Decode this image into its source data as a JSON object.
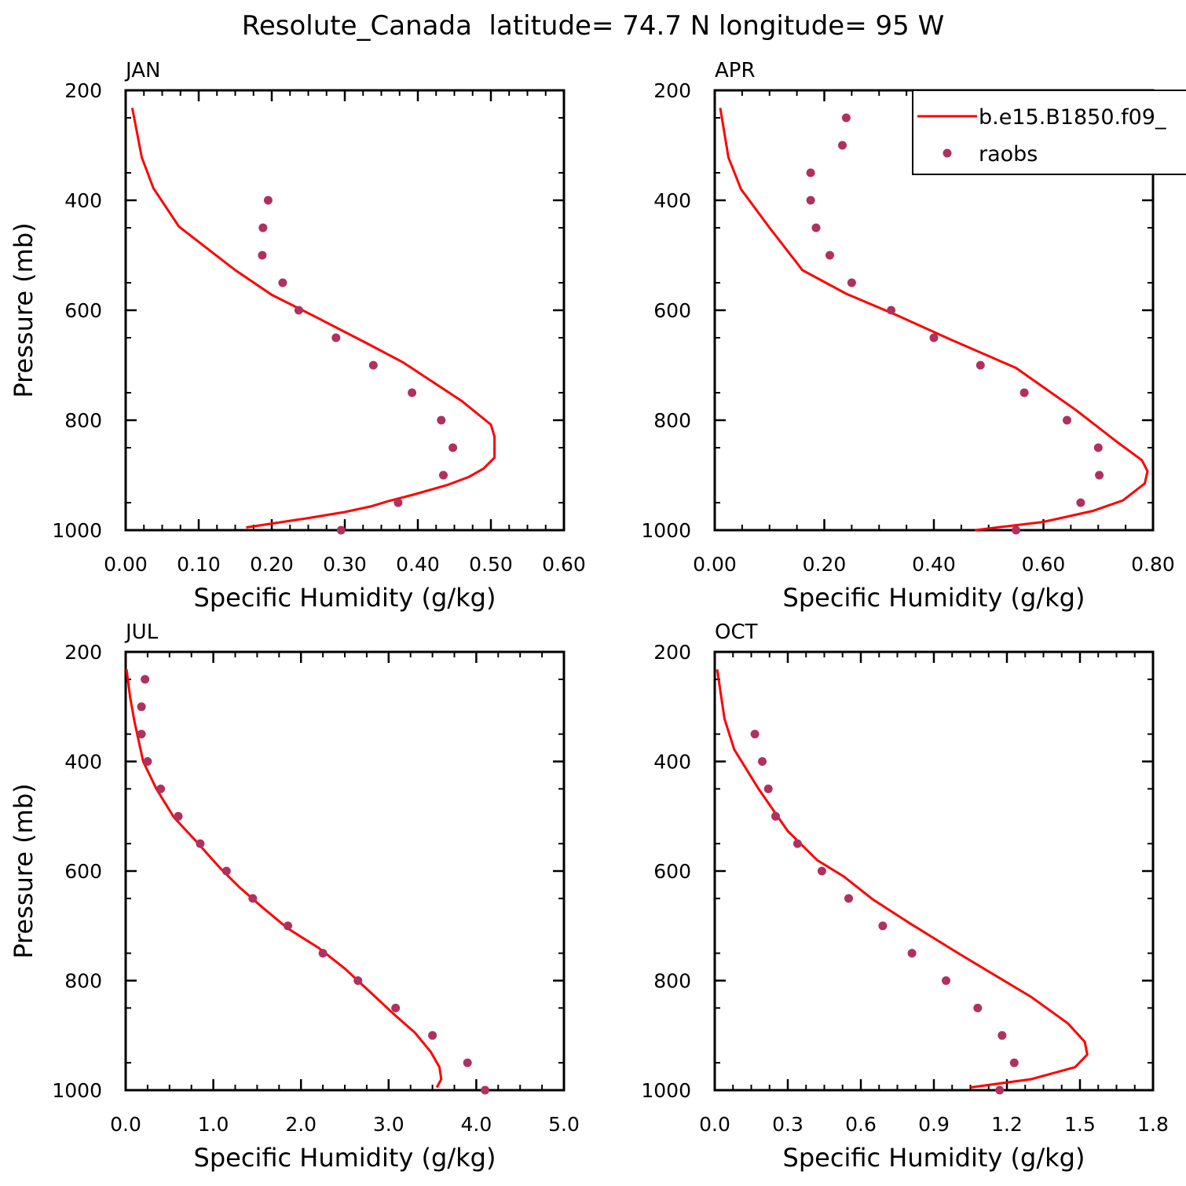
{
  "figure": {
    "title": "Resolute_Canada  latitude= 74.7 N longitude= 95 W"
  },
  "colors": {
    "model_line": "#ff0000",
    "obs_marker": "#b03060",
    "axes": "#000000"
  },
  "legend": {
    "placement": "top-right of APR panel",
    "entries": [
      {
        "label": "b.e15.B1850.f09_",
        "style": "line"
      },
      {
        "label": "raobs",
        "style": "marker"
      }
    ]
  },
  "chart_data": [
    {
      "panel": "JAN",
      "type": "line",
      "xlabel": "Specific Humidity (g/kg)",
      "ylabel": "Pressure (mb)",
      "xlim": [
        0,
        0.6
      ],
      "ylim": [
        1000,
        200
      ],
      "y_reversed": true,
      "xticks": [
        0,
        0.1,
        0.2,
        0.3,
        0.4,
        0.5,
        0.6
      ],
      "xtick_labels": [
        "0.00",
        "0.10",
        "0.20",
        "0.30",
        "0.40",
        "0.50",
        "0.60"
      ],
      "yticks": [
        200,
        400,
        600,
        800,
        1000
      ],
      "ytick_labels": [
        "200",
        "400",
        "600",
        "800",
        "1000"
      ],
      "series": [
        {
          "name": "b.e15.B1850.f09_",
          "kind": "line",
          "points": [
            [
              0.165,
              995
            ],
            [
              0.2,
              988
            ],
            [
              0.25,
              978
            ],
            [
              0.3,
              967
            ],
            [
              0.335,
              957
            ],
            [
              0.36,
              947
            ],
            [
              0.395,
              935
            ],
            [
              0.44,
              918
            ],
            [
              0.47,
              903
            ],
            [
              0.49,
              888
            ],
            [
              0.505,
              868
            ],
            [
              0.505,
              830
            ],
            [
              0.5,
              808
            ],
            [
              0.46,
              765
            ],
            [
              0.38,
              695
            ],
            [
              0.33,
              660
            ],
            [
              0.26,
              612
            ],
            [
              0.2,
              572
            ],
            [
              0.15,
              527
            ],
            [
              0.073,
              448
            ],
            [
              0.038,
              378
            ],
            [
              0.022,
              322
            ],
            [
              0.009,
              232
            ]
          ]
        },
        {
          "name": "raobs",
          "kind": "scatter",
          "points": [
            [
              0.195,
              400
            ],
            [
              0.188,
              450
            ],
            [
              0.187,
              500
            ],
            [
              0.215,
              550
            ],
            [
              0.237,
              600
            ],
            [
              0.288,
              650
            ],
            [
              0.339,
              700
            ],
            [
              0.392,
              750
            ],
            [
              0.432,
              800
            ],
            [
              0.448,
              850
            ],
            [
              0.435,
              900
            ],
            [
              0.373,
              950
            ],
            [
              0.295,
              1000
            ]
          ]
        }
      ]
    },
    {
      "panel": "APR",
      "type": "line",
      "xlabel": "Specific Humidity (g/kg)",
      "ylabel": "",
      "xlim": [
        0,
        0.8
      ],
      "ylim": [
        1000,
        200
      ],
      "y_reversed": true,
      "xticks": [
        0,
        0.2,
        0.4,
        0.6,
        0.8
      ],
      "xtick_labels": [
        "0.00",
        "0.20",
        "0.40",
        "0.60",
        "0.80"
      ],
      "yticks": [
        200,
        400,
        600,
        800,
        1000
      ],
      "ytick_labels": [
        "200",
        "400",
        "600",
        "800",
        "1000"
      ],
      "series": [
        {
          "name": "b.e15.B1850.f09_",
          "kind": "line",
          "points": [
            [
              0.475,
              1000
            ],
            [
              0.6,
              985
            ],
            [
              0.69,
              965
            ],
            [
              0.745,
              946
            ],
            [
              0.785,
              915
            ],
            [
              0.79,
              893
            ],
            [
              0.78,
              873
            ],
            [
              0.735,
              840
            ],
            [
              0.66,
              782
            ],
            [
              0.55,
              705
            ],
            [
              0.43,
              653
            ],
            [
              0.33,
              608
            ],
            [
              0.24,
              570
            ],
            [
              0.16,
              527
            ],
            [
              0.1,
              450
            ],
            [
              0.048,
              380
            ],
            [
              0.025,
              322
            ],
            [
              0.01,
              232
            ]
          ]
        },
        {
          "name": "raobs",
          "kind": "scatter",
          "points": [
            [
              0.24,
              250
            ],
            [
              0.233,
              300
            ],
            [
              0.175,
              350
            ],
            [
              0.175,
              400
            ],
            [
              0.185,
              450
            ],
            [
              0.21,
              500
            ],
            [
              0.25,
              550
            ],
            [
              0.322,
              600
            ],
            [
              0.4,
              650
            ],
            [
              0.485,
              700
            ],
            [
              0.565,
              750
            ],
            [
              0.643,
              800
            ],
            [
              0.7,
              850
            ],
            [
              0.702,
              900
            ],
            [
              0.668,
              950
            ],
            [
              0.55,
              1000
            ]
          ]
        }
      ]
    },
    {
      "panel": "JUL",
      "type": "line",
      "xlabel": "Specific Humidity (g/kg)",
      "ylabel": "Pressure (mb)",
      "xlim": [
        0,
        5.0
      ],
      "ylim": [
        1000,
        200
      ],
      "y_reversed": true,
      "xticks": [
        0,
        1,
        2,
        3,
        4,
        5
      ],
      "xtick_labels": [
        "0.0",
        "1.0",
        "2.0",
        "3.0",
        "4.0",
        "5.0"
      ],
      "yticks": [
        200,
        400,
        600,
        800,
        1000
      ],
      "ytick_labels": [
        "200",
        "400",
        "600",
        "800",
        "1000"
      ],
      "series": [
        {
          "name": "b.e15.B1850.f09_",
          "kind": "line",
          "points": [
            [
              3.55,
              995
            ],
            [
              3.6,
              980
            ],
            [
              3.58,
              958
            ],
            [
              3.48,
              930
            ],
            [
              3.3,
              895
            ],
            [
              3.05,
              860
            ],
            [
              2.85,
              830
            ],
            [
              2.5,
              778
            ],
            [
              2.2,
              740
            ],
            [
              1.85,
              705
            ],
            [
              1.55,
              665
            ],
            [
              1.3,
              630
            ],
            [
              1.08,
              595
            ],
            [
              0.8,
              545
            ],
            [
              0.55,
              502
            ],
            [
              0.35,
              450
            ],
            [
              0.2,
              400
            ],
            [
              0.1,
              327
            ],
            [
              0.05,
              282
            ],
            [
              0.01,
              232
            ]
          ]
        },
        {
          "name": "raobs",
          "kind": "scatter",
          "points": [
            [
              0.22,
              250
            ],
            [
              0.18,
              300
            ],
            [
              0.18,
              350
            ],
            [
              0.25,
              400
            ],
            [
              0.4,
              450
            ],
            [
              0.6,
              500
            ],
            [
              0.85,
              550
            ],
            [
              1.15,
              600
            ],
            [
              1.45,
              650
            ],
            [
              1.85,
              700
            ],
            [
              2.25,
              750
            ],
            [
              2.65,
              800
            ],
            [
              3.08,
              850
            ],
            [
              3.5,
              900
            ],
            [
              3.9,
              950
            ],
            [
              4.1,
              1000
            ]
          ]
        }
      ]
    },
    {
      "panel": "OCT",
      "type": "line",
      "xlabel": "Specific Humidity (g/kg)",
      "ylabel": "",
      "xlim": [
        0,
        1.8
      ],
      "ylim": [
        1000,
        200
      ],
      "y_reversed": true,
      "xticks": [
        0,
        0.3,
        0.6,
        0.9,
        1.2,
        1.5,
        1.8
      ],
      "xtick_labels": [
        "0.0",
        "0.3",
        "0.6",
        "0.9",
        "1.2",
        "1.5",
        "1.8"
      ],
      "yticks": [
        200,
        400,
        600,
        800,
        1000
      ],
      "ytick_labels": [
        "200",
        "400",
        "600",
        "800",
        "1000"
      ],
      "series": [
        {
          "name": "b.e15.B1850.f09_",
          "kind": "line",
          "points": [
            [
              1.05,
              995
            ],
            [
              1.3,
              980
            ],
            [
              1.48,
              958
            ],
            [
              1.53,
              935
            ],
            [
              1.52,
              912
            ],
            [
              1.45,
              878
            ],
            [
              1.4,
              862
            ],
            [
              1.3,
              830
            ],
            [
              1.0,
              750
            ],
            [
              0.8,
              695
            ],
            [
              0.65,
              652
            ],
            [
              0.53,
              610
            ],
            [
              0.42,
              580
            ],
            [
              0.3,
              527
            ],
            [
              0.18,
              450
            ],
            [
              0.08,
              378
            ],
            [
              0.04,
              322
            ],
            [
              0.01,
              232
            ]
          ]
        },
        {
          "name": "raobs",
          "kind": "scatter",
          "points": [
            [
              0.165,
              350
            ],
            [
              0.195,
              400
            ],
            [
              0.22,
              450
            ],
            [
              0.25,
              500
            ],
            [
              0.34,
              550
            ],
            [
              0.44,
              600
            ],
            [
              0.55,
              650
            ],
            [
              0.69,
              700
            ],
            [
              0.81,
              750
            ],
            [
              0.95,
              800
            ],
            [
              1.08,
              850
            ],
            [
              1.18,
              900
            ],
            [
              1.23,
              950
            ],
            [
              1.17,
              1000
            ]
          ]
        }
      ]
    }
  ]
}
